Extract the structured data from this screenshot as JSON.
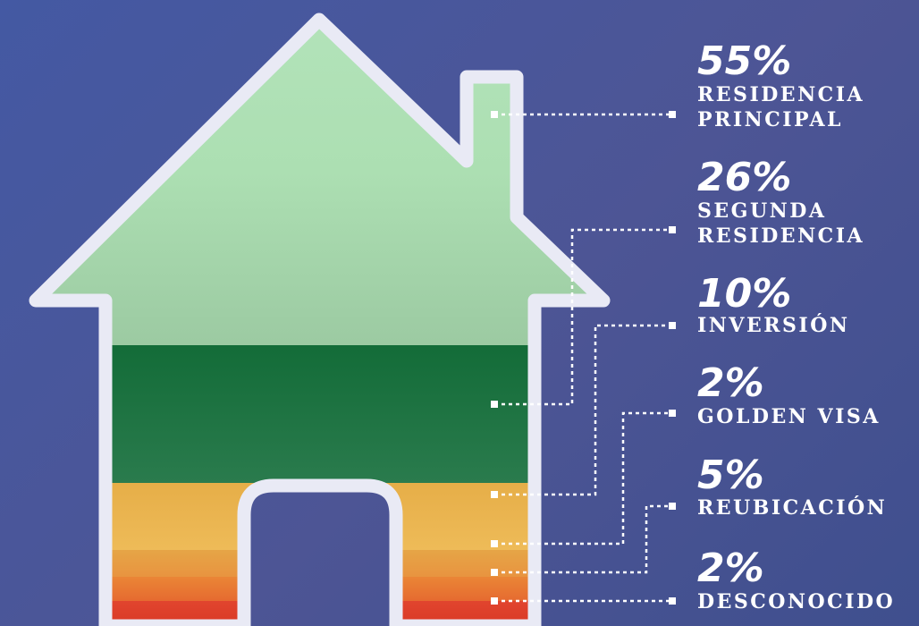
{
  "chart_data": {
    "type": "stacked-area",
    "categories": [
      {
        "percent": "55%",
        "lines": [
          "RESIDENCIA",
          "PRINCIPAL"
        ],
        "value": 55,
        "color": "#a8d8ae"
      },
      {
        "percent": "26%",
        "lines": [
          "SEGUNDA",
          "RESIDENCIA"
        ],
        "value": 26,
        "color": "#1c7040"
      },
      {
        "percent": "10%",
        "lines": [
          "INVERSIÓN"
        ],
        "value": 10,
        "color": "#e8b24c"
      },
      {
        "percent": "2%",
        "lines": [
          "GOLDEN VISA"
        ],
        "value": 2,
        "color": "#eeb85a"
      },
      {
        "percent": "5%",
        "lines": [
          "REUBICACIÓN"
        ],
        "value": 5,
        "color": "#ea7f36"
      },
      {
        "percent": "2%",
        "lines": [
          "DESCONOCIDO"
        ],
        "value": 2,
        "color": "#dd3e2b"
      }
    ]
  }
}
